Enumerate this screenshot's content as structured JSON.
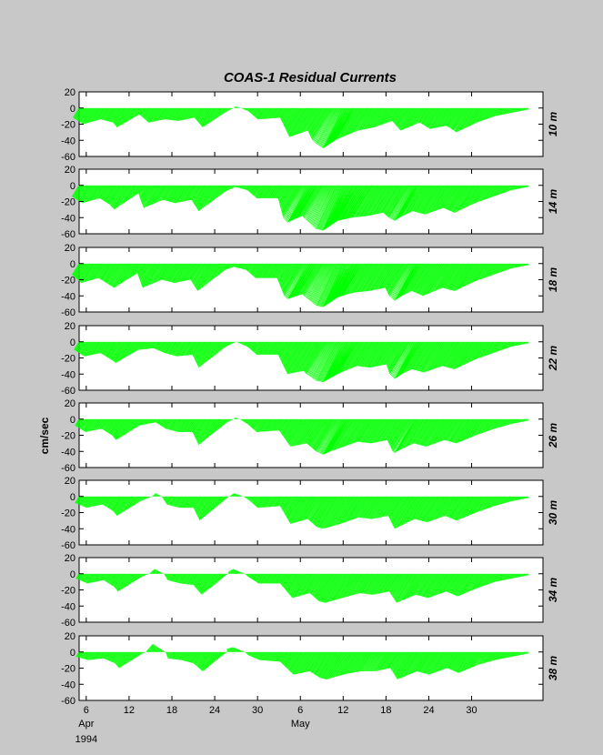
{
  "chart_data": {
    "type": "line",
    "title": "COAS-1   Residual Currents",
    "ylabel": "cm/sec",
    "ylim": [
      -60,
      20
    ],
    "yticks": [
      20,
      0,
      -20,
      -40,
      -60
    ],
    "xlim_days": [
      5,
      70
    ],
    "xticks": [
      {
        "day": 6,
        "label": "6"
      },
      {
        "day": 12,
        "label": "12"
      },
      {
        "day": 18,
        "label": "18"
      },
      {
        "day": 24,
        "label": "24"
      },
      {
        "day": 30,
        "label": "30"
      },
      {
        "day": 36,
        "label": "6"
      },
      {
        "day": 42,
        "label": "12"
      },
      {
        "day": 48,
        "label": "18"
      },
      {
        "day": 54,
        "label": "24"
      },
      {
        "day": 60,
        "label": "30"
      }
    ],
    "month_labels": [
      {
        "day": 6,
        "label": "Apr"
      },
      {
        "day": 36,
        "label": "May"
      }
    ],
    "year_label": "1994",
    "stick_color": "#00ff00",
    "series": [
      {
        "name": "10 m",
        "x": [
          5,
          7,
          9,
          11,
          12,
          14,
          16,
          18,
          20,
          22,
          24,
          26,
          27,
          29,
          31,
          34,
          37,
          39,
          41,
          42,
          44,
          46,
          48,
          50,
          52,
          54,
          56,
          58,
          60,
          62,
          64,
          66,
          68
        ],
        "y": [
          -12,
          -20,
          -14,
          -18,
          -24,
          -8,
          -18,
          -14,
          -16,
          -12,
          -24,
          -4,
          2,
          -4,
          -14,
          -12,
          -36,
          -28,
          -44,
          -50,
          -38,
          -28,
          -24,
          -16,
          -28,
          -18,
          -26,
          -22,
          -30,
          -18,
          -10,
          -6,
          -2
        ]
      },
      {
        "name": "14 m",
        "x": [
          5,
          7,
          9,
          11,
          12,
          14,
          16,
          18,
          20,
          22,
          24,
          26,
          27,
          29,
          31,
          34,
          37,
          39,
          41,
          42,
          44,
          46,
          48,
          50,
          52,
          54,
          56,
          58,
          60,
          62,
          64,
          66,
          68
        ],
        "y": [
          -14,
          -22,
          -16,
          -24,
          -30,
          -10,
          -28,
          -18,
          -22,
          -18,
          -32,
          -8,
          -2,
          -6,
          -16,
          -16,
          -46,
          -38,
          -54,
          -56,
          -44,
          -40,
          -38,
          -34,
          -44,
          -32,
          -36,
          -28,
          -34,
          -22,
          -14,
          -6,
          -2
        ]
      },
      {
        "name": "18 m",
        "x": [
          5,
          7,
          9,
          11,
          12,
          14,
          16,
          18,
          20,
          22,
          24,
          26,
          27,
          29,
          31,
          34,
          37,
          39,
          41,
          42,
          44,
          46,
          48,
          50,
          52,
          54,
          56,
          58,
          60,
          62,
          64,
          66,
          68
        ],
        "y": [
          -14,
          -24,
          -18,
          -26,
          -30,
          -12,
          -30,
          -20,
          -24,
          -20,
          -34,
          -8,
          -4,
          -8,
          -18,
          -18,
          -44,
          -38,
          -52,
          -54,
          -42,
          -36,
          -34,
          -30,
          -46,
          -34,
          -40,
          -30,
          -34,
          -22,
          -14,
          -6,
          -2
        ]
      },
      {
        "name": "22 m",
        "x": [
          5,
          7,
          9,
          11,
          12,
          14,
          16,
          18,
          20,
          22,
          24,
          26,
          27,
          29,
          31,
          34,
          37,
          39,
          41,
          42,
          44,
          46,
          48,
          50,
          52,
          54,
          56,
          58,
          60,
          62,
          64,
          66,
          68
        ],
        "y": [
          -10,
          -18,
          -14,
          -22,
          -26,
          -10,
          -8,
          -14,
          -18,
          -16,
          -32,
          -6,
          0,
          -6,
          -16,
          -16,
          -40,
          -36,
          -48,
          -50,
          -40,
          -30,
          -32,
          -28,
          -46,
          -34,
          -38,
          -30,
          -34,
          -22,
          -14,
          -6,
          -2
        ]
      },
      {
        "name": "26 m",
        "x": [
          5,
          7,
          9,
          11,
          12,
          14,
          16,
          18,
          20,
          22,
          24,
          26,
          27,
          29,
          31,
          34,
          37,
          39,
          41,
          42,
          44,
          46,
          48,
          50,
          52,
          54,
          56,
          58,
          60,
          62,
          64,
          66,
          68
        ],
        "y": [
          -8,
          -16,
          -12,
          -20,
          -26,
          -8,
          -4,
          -12,
          -16,
          -16,
          -32,
          -4,
          2,
          -6,
          -16,
          -14,
          -34,
          -30,
          -40,
          -44,
          -36,
          -28,
          -30,
          -26,
          -42,
          -30,
          -34,
          -26,
          -30,
          -20,
          -12,
          -6,
          -2
        ]
      },
      {
        "name": "30 m",
        "x": [
          5,
          7,
          9,
          11,
          12,
          14,
          16,
          18,
          20,
          22,
          24,
          26,
          27,
          29,
          31,
          34,
          37,
          39,
          41,
          42,
          44,
          46,
          48,
          50,
          52,
          54,
          56,
          58,
          60,
          62,
          64,
          66,
          68
        ],
        "y": [
          -8,
          -14,
          -10,
          -18,
          -24,
          -6,
          4,
          -10,
          -14,
          -14,
          -30,
          0,
          4,
          -4,
          -14,
          -12,
          -34,
          -28,
          -38,
          -40,
          -34,
          -26,
          -28,
          -24,
          -40,
          -28,
          -32,
          -24,
          -30,
          -20,
          -12,
          -6,
          -2
        ]
      },
      {
        "name": "34 m",
        "x": [
          5,
          7,
          9,
          11,
          12,
          14,
          16,
          18,
          20,
          22,
          24,
          26,
          27,
          29,
          31,
          34,
          37,
          39,
          41,
          42,
          44,
          46,
          48,
          50,
          52,
          54,
          56,
          58,
          60,
          62,
          64,
          66,
          68
        ],
        "y": [
          -6,
          -12,
          -8,
          -16,
          -22,
          -4,
          6,
          -8,
          -12,
          -14,
          -26,
          2,
          6,
          -4,
          -12,
          -12,
          -30,
          -24,
          -34,
          -36,
          -30,
          -24,
          -26,
          -22,
          -36,
          -26,
          -30,
          -22,
          -28,
          -18,
          -10,
          -6,
          -2
        ]
      },
      {
        "name": "38 m",
        "x": [
          5,
          7,
          9,
          11,
          12,
          14,
          16,
          18,
          20,
          22,
          24,
          26,
          27,
          29,
          31,
          34,
          37,
          39,
          41,
          42,
          44,
          46,
          48,
          50,
          52,
          54,
          56,
          58,
          60,
          62,
          64,
          66,
          68
        ],
        "y": [
          -6,
          -10,
          -8,
          -14,
          -20,
          -2,
          10,
          -8,
          -10,
          -14,
          -24,
          4,
          6,
          -4,
          -10,
          -12,
          -28,
          -24,
          -32,
          -34,
          -28,
          -24,
          -24,
          -20,
          -34,
          -24,
          -28,
          -20,
          -26,
          -16,
          -10,
          -6,
          -2
        ]
      }
    ]
  }
}
